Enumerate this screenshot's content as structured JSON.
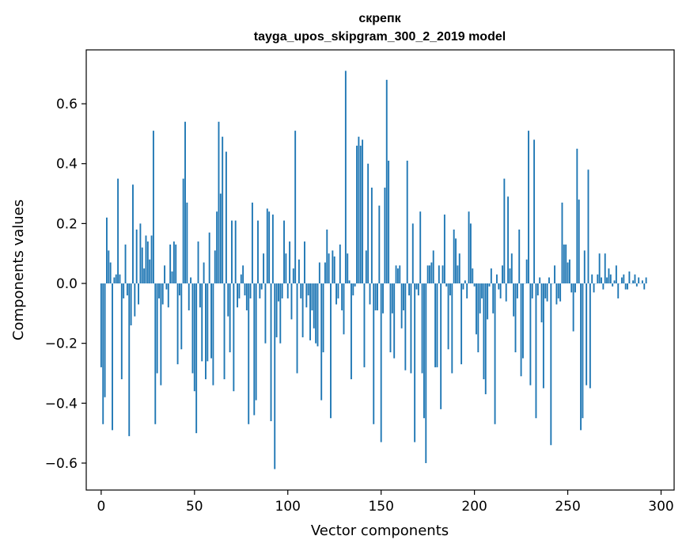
{
  "chart_data": {
    "type": "bar",
    "title": "скрепк",
    "subtitle": "tayga_upos_skipgram_300_2_2019 model",
    "xlabel": "Vector components",
    "ylabel": "Components values",
    "xlim": [
      -8,
      307
    ],
    "ylim": [
      -0.69,
      0.78
    ],
    "x_ticks": [
      0,
      50,
      100,
      150,
      200,
      250,
      300
    ],
    "y_ticks": [
      -0.6,
      -0.4,
      -0.2,
      0.0,
      0.2,
      0.4,
      0.6
    ],
    "x_tick_labels": [
      "0",
      "50",
      "100",
      "150",
      "200",
      "250",
      "300"
    ],
    "y_tick_labels": [
      "−0.6",
      "−0.4",
      "−0.2",
      "0.0",
      "0.2",
      "0.4",
      "0.6"
    ],
    "color": "#1f77b4",
    "values": [
      -0.28,
      -0.47,
      -0.38,
      0.22,
      0.11,
      0.07,
      -0.49,
      0.02,
      0.03,
      0.35,
      0.03,
      -0.32,
      -0.05,
      0.13,
      -0.04,
      -0.51,
      -0.14,
      0.33,
      -0.11,
      0.18,
      -0.07,
      0.2,
      0.12,
      0.05,
      0.16,
      0.14,
      0.08,
      0.16,
      0.51,
      -0.47,
      -0.3,
      -0.05,
      -0.34,
      -0.07,
      0.06,
      -0.02,
      -0.08,
      0.13,
      0.04,
      0.14,
      0.13,
      -0.27,
      -0.04,
      -0.22,
      0.35,
      0.54,
      0.27,
      -0.09,
      0.02,
      -0.3,
      -0.36,
      -0.5,
      0.14,
      -0.08,
      -0.26,
      0.07,
      -0.32,
      -0.26,
      0.17,
      -0.25,
      -0.34,
      0.11,
      0.24,
      0.54,
      0.3,
      0.49,
      -0.32,
      0.44,
      -0.11,
      -0.23,
      0.21,
      -0.36,
      0.21,
      -0.08,
      -0.05,
      0.03,
      0.06,
      -0.04,
      -0.09,
      -0.47,
      -0.05,
      0.27,
      -0.44,
      -0.39,
      0.21,
      -0.05,
      -0.02,
      0.1,
      -0.2,
      0.25,
      0.24,
      -0.46,
      0.23,
      -0.62,
      -0.18,
      -0.06,
      -0.2,
      -0.05,
      0.21,
      0.1,
      -0.05,
      0.14,
      -0.12,
      0.05,
      0.51,
      -0.3,
      0.08,
      -0.05,
      -0.18,
      0.14,
      -0.08,
      -0.04,
      -0.19,
      -0.09,
      -0.15,
      -0.2,
      -0.21,
      0.07,
      -0.39,
      -0.23,
      0.07,
      0.18,
      0.1,
      -0.45,
      0.11,
      0.09,
      -0.07,
      -0.05,
      0.13,
      -0.09,
      -0.17,
      0.71,
      0.1,
      0.01,
      -0.32,
      -0.04,
      -0.01,
      0.46,
      0.49,
      0.46,
      0.48,
      -0.28,
      0.11,
      0.4,
      -0.07,
      0.32,
      -0.47,
      -0.09,
      -0.09,
      0.26,
      -0.53,
      -0.1,
      0.32,
      0.68,
      0.41,
      -0.23,
      -0.1,
      -0.25,
      0.06,
      0.05,
      0.06,
      -0.15,
      -0.09,
      -0.29,
      0.41,
      -0.04,
      -0.3,
      0.2,
      -0.53,
      -0.02,
      -0.04,
      0.24,
      -0.3,
      -0.45,
      -0.6,
      0.06,
      0.06,
      0.07,
      0.11,
      -0.28,
      -0.28,
      0.06,
      -0.42,
      0.06,
      0.23,
      -0.01,
      -0.22,
      -0.04,
      -0.3,
      0.18,
      0.15,
      0.06,
      0.1,
      -0.27,
      -0.02,
      0.01,
      -0.05,
      0.24,
      0.2,
      0.05,
      -0.01,
      -0.17,
      -0.23,
      -0.1,
      -0.05,
      -0.32,
      -0.37,
      -0.12,
      -0.01,
      0.05,
      -0.1,
      -0.47,
      0.03,
      -0.02,
      -0.05,
      0.06,
      0.35,
      -0.06,
      0.29,
      0.05,
      0.1,
      -0.11,
      -0.23,
      -0.05,
      0.18,
      -0.31,
      -0.25,
      0.0,
      0.08,
      0.51,
      -0.34,
      -0.05,
      0.48,
      -0.45,
      -0.04,
      0.02,
      -0.13,
      -0.35,
      -0.05,
      -0.06,
      0.02,
      -0.54,
      0.0,
      0.06,
      -0.07,
      -0.05,
      -0.06,
      0.27,
      0.13,
      0.13,
      0.07,
      0.08,
      -0.03,
      -0.16,
      -0.03,
      0.45,
      0.28,
      -0.49,
      -0.45,
      0.11,
      -0.34,
      0.38,
      -0.35,
      0.03,
      -0.03,
      0.0,
      0.03,
      0.1,
      0.02,
      -0.02,
      0.1,
      0.02,
      0.05,
      0.03,
      -0.01,
      0.01,
      0.06,
      -0.05,
      0.0,
      0.02,
      0.03,
      -0.02,
      -0.02,
      0.04,
      0.0,
      0.01,
      0.03,
      -0.01,
      0.02,
      0.0,
      0.01,
      -0.02,
      0.02
    ]
  }
}
